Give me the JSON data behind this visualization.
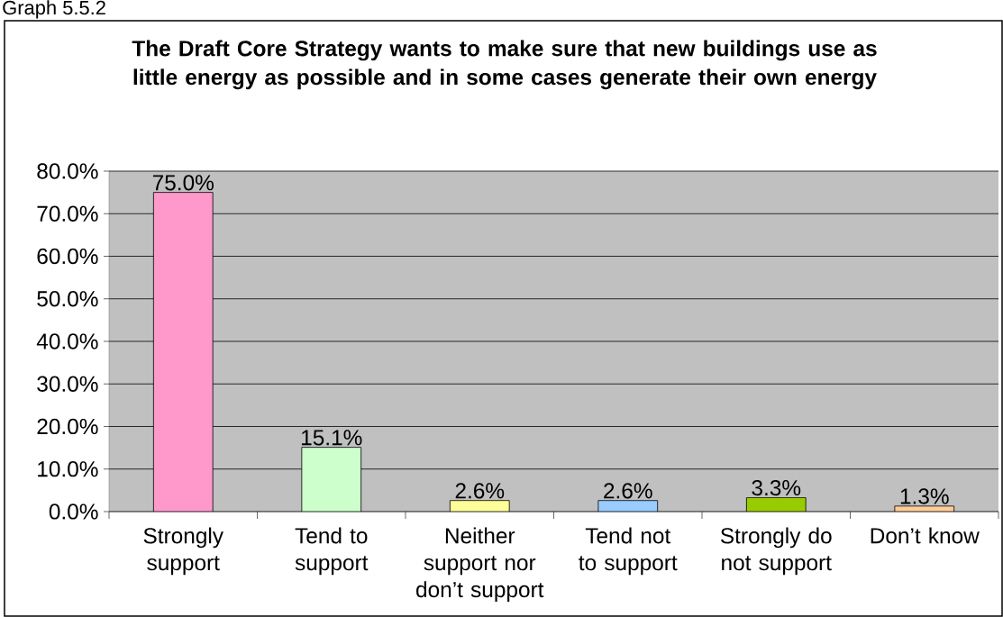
{
  "chart_data": {
    "type": "bar",
    "title": "The Draft Core Strategy wants to make sure that new buildings use as little energy as possible and in some cases generate their own energy",
    "annotations": [
      "Graph 5.5.2"
    ],
    "categories": [
      "Strongly support",
      "Tend to support",
      "Neither support nor don’t support",
      "Tend not to support",
      "Strongly do not support",
      "Don’t know"
    ],
    "values": [
      75.0,
      15.1,
      2.6,
      2.6,
      3.3,
      1.3
    ],
    "value_labels": [
      "75.0%",
      "15.1%",
      "2.6%",
      "2.6%",
      "3.3%",
      "1.3%"
    ],
    "colors": [
      "#ff99cc",
      "#ccffcc",
      "#ffff99",
      "#99ccff",
      "#99cc00",
      "#ffcc99"
    ],
    "ylim": [
      0,
      80
    ],
    "yticks": [
      {
        "value": 0,
        "label": "0.0%"
      },
      {
        "value": 10,
        "label": "10.0%"
      },
      {
        "value": 20,
        "label": "20.0%"
      },
      {
        "value": 30,
        "label": "30.0%"
      },
      {
        "value": 40,
        "label": "40.0%"
      },
      {
        "value": 50,
        "label": "50.0%"
      },
      {
        "value": 60,
        "label": "60.0%"
      },
      {
        "value": 70,
        "label": "70.0%"
      },
      {
        "value": 80,
        "label": "80.0%"
      }
    ],
    "grid": "y"
  }
}
